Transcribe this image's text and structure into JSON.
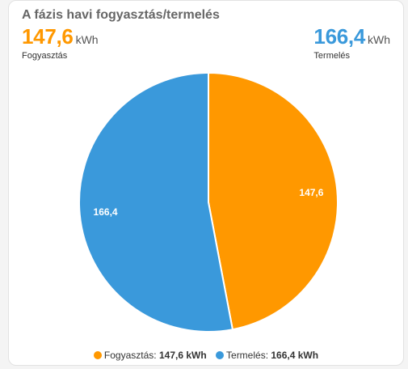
{
  "card": {
    "title": "A fázis havi fogyasztás/termelés",
    "consumption": {
      "value": "147,6",
      "unit": "kWh",
      "label": "Fogyasztás",
      "color": "#ff9800"
    },
    "production": {
      "value": "166,4",
      "unit": "kWh",
      "label": "Termelés",
      "color": "#3a99db"
    }
  },
  "legend": {
    "items": [
      {
        "label": "Fogyasztás:",
        "value": "147,6 kWh",
        "color": "#ff9800"
      },
      {
        "label": "Termelés:",
        "value": "166,4 kWh",
        "color": "#3a99db"
      }
    ]
  },
  "chart_data": {
    "type": "pie",
    "title": "",
    "categories": [
      "Fogyasztás",
      "Termelés"
    ],
    "values": [
      147.6,
      166.4
    ],
    "labels": [
      "147,6",
      "166,4"
    ],
    "colors": [
      "#ff9800",
      "#3a99db"
    ],
    "start": "top, clockwise",
    "legend": "bottom"
  }
}
